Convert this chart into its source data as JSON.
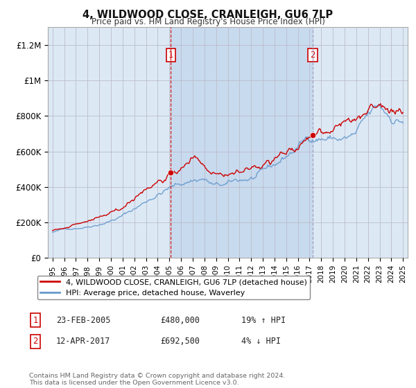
{
  "title": "4, WILDWOOD CLOSE, CRANLEIGH, GU6 7LP",
  "subtitle": "Price paid vs. HM Land Registry's House Price Index (HPI)",
  "ylabel_ticks": [
    "£0",
    "£200K",
    "£400K",
    "£600K",
    "£800K",
    "£1M",
    "£1.2M"
  ],
  "ytick_values": [
    0,
    200000,
    400000,
    600000,
    800000,
    1000000,
    1200000
  ],
  "ylim": [
    0,
    1300000
  ],
  "xlim_start": 1994.6,
  "xlim_end": 2025.4,
  "purchase1_date": 2005.12,
  "purchase1_price": 480000,
  "purchase1_display": "23-FEB-2005",
  "purchase1_price_str": "£480,000",
  "purchase1_hpi": "19% ↑ HPI",
  "purchase2_date": 2017.28,
  "purchase2_price": 692500,
  "purchase2_display": "12-APR-2017",
  "purchase2_price_str": "£692,500",
  "purchase2_hpi": "4% ↓ HPI",
  "legend_entry1": "4, WILDWOOD CLOSE, CRANLEIGH, GU6 7LP (detached house)",
  "legend_entry2": "HPI: Average price, detached house, Waverley",
  "footer": "Contains HM Land Registry data © Crown copyright and database right 2024.\nThis data is licensed under the Open Government Licence v3.0.",
  "property_color": "#cc0000",
  "hpi_color": "#6699cc",
  "bg_color": "#dce9f5",
  "shade_color": "#c5d8ed",
  "plot_bg": "#ffffff",
  "vline_color": "#cc0000",
  "vline2_color": "#9999bb"
}
